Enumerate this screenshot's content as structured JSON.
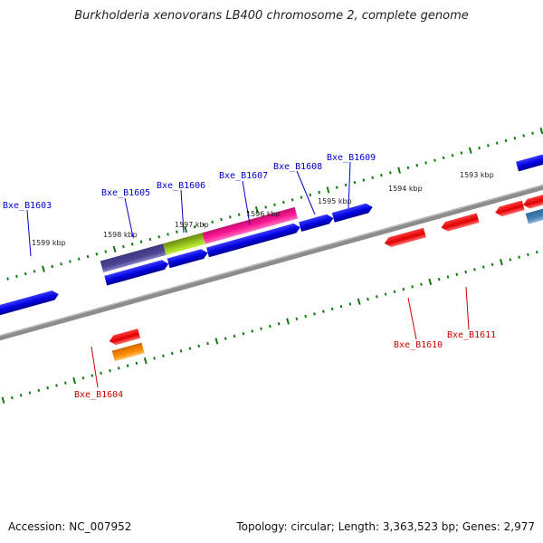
{
  "title": "Burkholderia xenovorans LB400 chromosome 2, complete genome",
  "footer": {
    "accession": "Accession: NC_007952",
    "summary": "Topology: circular; Length: 3,363,523 bp; Genes: 2,977"
  },
  "tick_labels": [
    "1599 kbp",
    "1598 kbp",
    "1597 kbp",
    "1596 kbp",
    "1595 kbp",
    "1594 kbp",
    "1593 kbp"
  ],
  "gene_labels": {
    "forward": [
      "Bxe_B1603",
      "Bxe_B1605",
      "Bxe_B1606",
      "Bxe_B1607",
      "Bxe_B1608",
      "Bxe_B1609"
    ],
    "reverse": [
      "Bxe_B1604",
      "Bxe_B1610",
      "Bxe_B1611"
    ]
  },
  "colors": {
    "forward_label": "#0000cc",
    "reverse_label": "#cc0000",
    "forward_gene": "#0000ee",
    "reverse_gene": "#ee0000",
    "tick": "#117711",
    "backbone": "#888888"
  }
}
